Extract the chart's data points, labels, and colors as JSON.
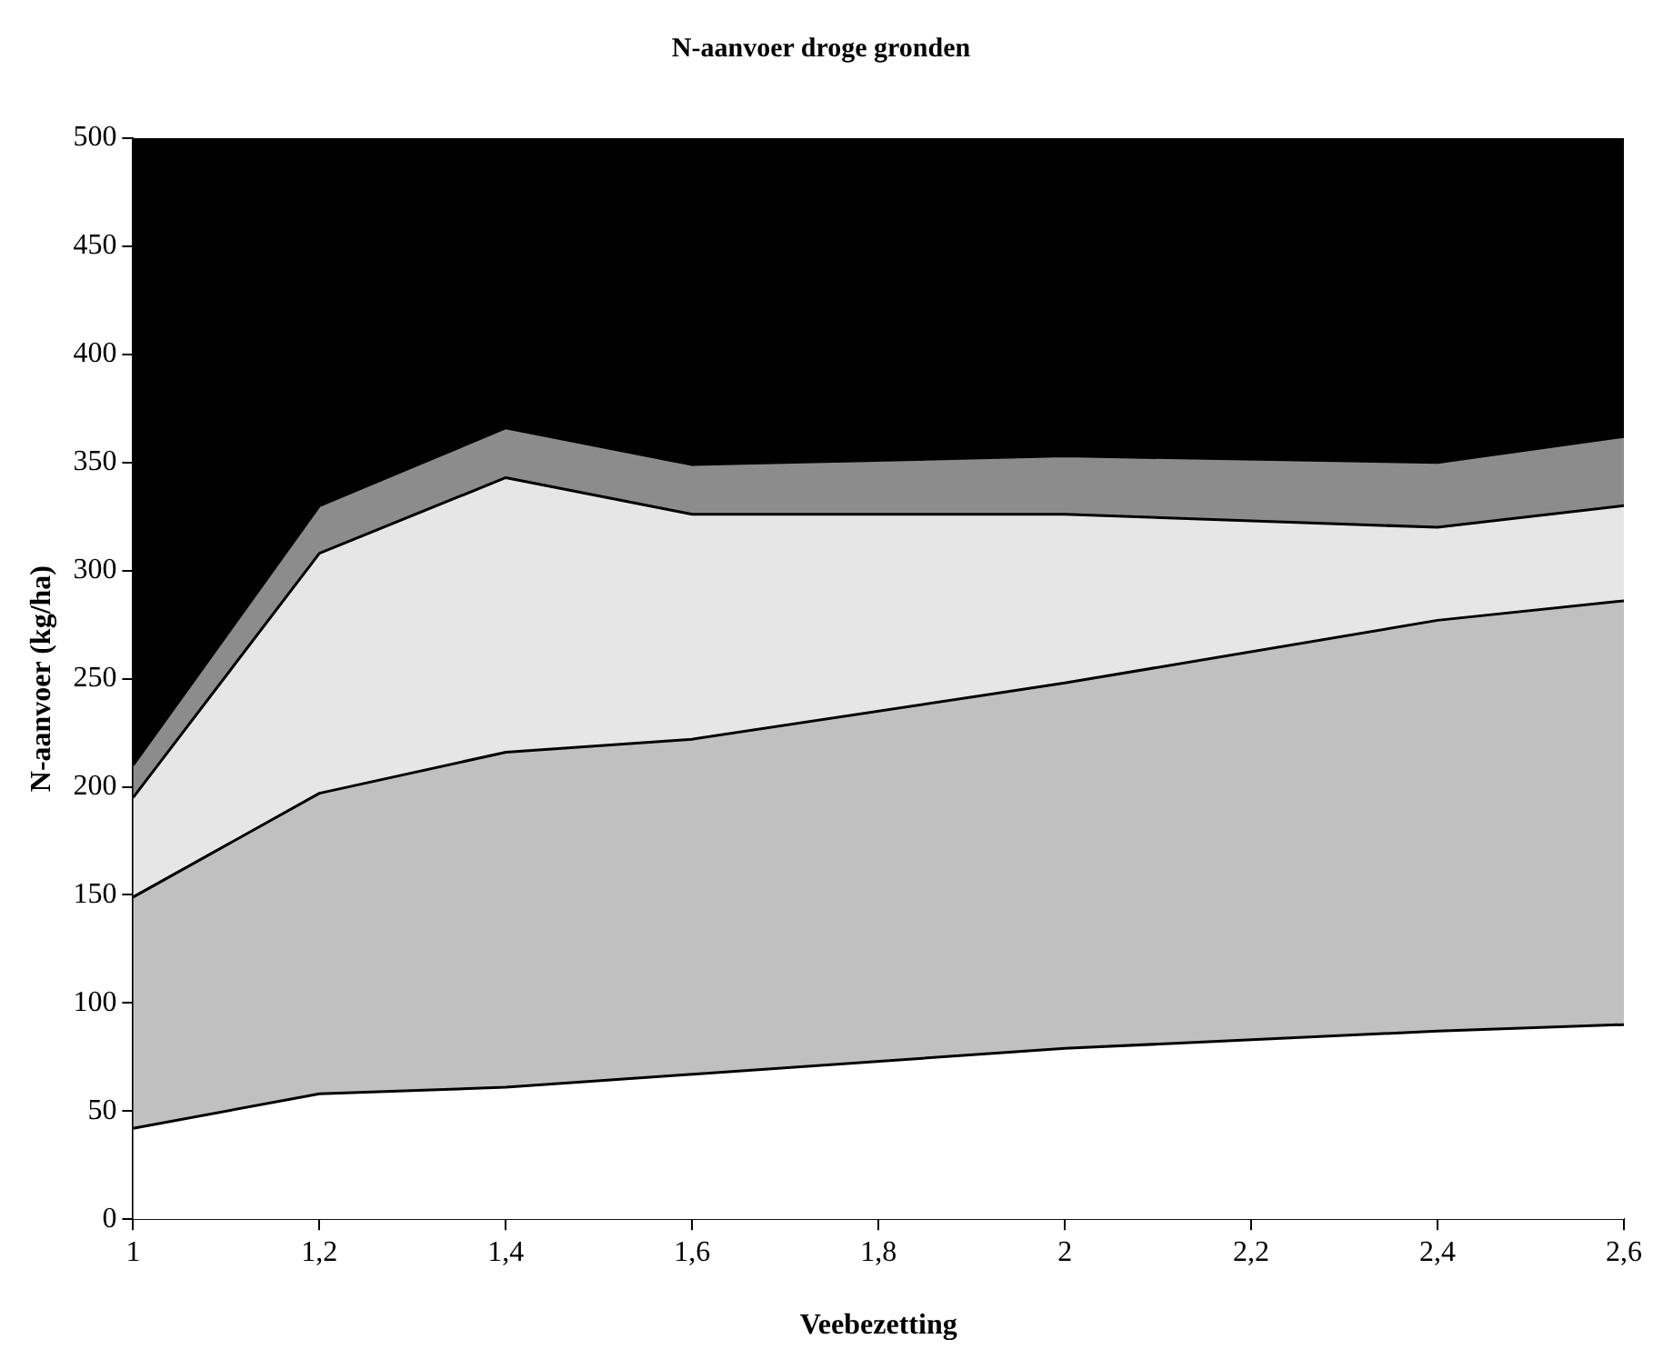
{
  "chart_data": {
    "type": "area",
    "title": "N-aanvoer droge gronden",
    "xlabel": "Veebezetting",
    "ylabel": "N-aanvoer (kg/ha)",
    "x": [
      1,
      1.2,
      1.4,
      1.6,
      2,
      2.4,
      2.6
    ],
    "stacked": true,
    "marker": "none",
    "grid": false,
    "legend": false,
    "series": [
      {
        "color": "#ffffff",
        "values": [
          42,
          58,
          61,
          67,
          79,
          87,
          90
        ]
      },
      {
        "color": "#c0c0c0",
        "values": [
          107,
          139,
          155,
          155,
          169,
          190,
          196
        ]
      },
      {
        "color": "#e6e6e6",
        "values": [
          46,
          111,
          127,
          104,
          78,
          43,
          44
        ]
      },
      {
        "color": "#8c8c8c",
        "values": [
          15,
          22,
          23,
          23,
          27,
          30,
          32
        ]
      },
      {
        "color": "#000000",
        "values": [
          290,
          170,
          134,
          151,
          147,
          150,
          138
        ]
      }
    ],
    "xlim": [
      1,
      2.6
    ],
    "xticks": [
      1,
      {
        "value": 1.2,
        "label": "1,2"
      },
      {
        "value": 1.4,
        "label": "1,4"
      },
      {
        "value": 1.6,
        "label": "1,6"
      },
      {
        "value": 1.8,
        "label": "1,8"
      },
      2,
      {
        "value": 2.2,
        "label": "2,2"
      },
      {
        "value": 2.4,
        "label": "2,4"
      },
      {
        "value": 2.6,
        "label": "2,6"
      }
    ],
    "ylim": [
      0,
      500
    ],
    "yticks": [
      0,
      50,
      100,
      150,
      200,
      250,
      300,
      350,
      400,
      450,
      500
    ]
  }
}
